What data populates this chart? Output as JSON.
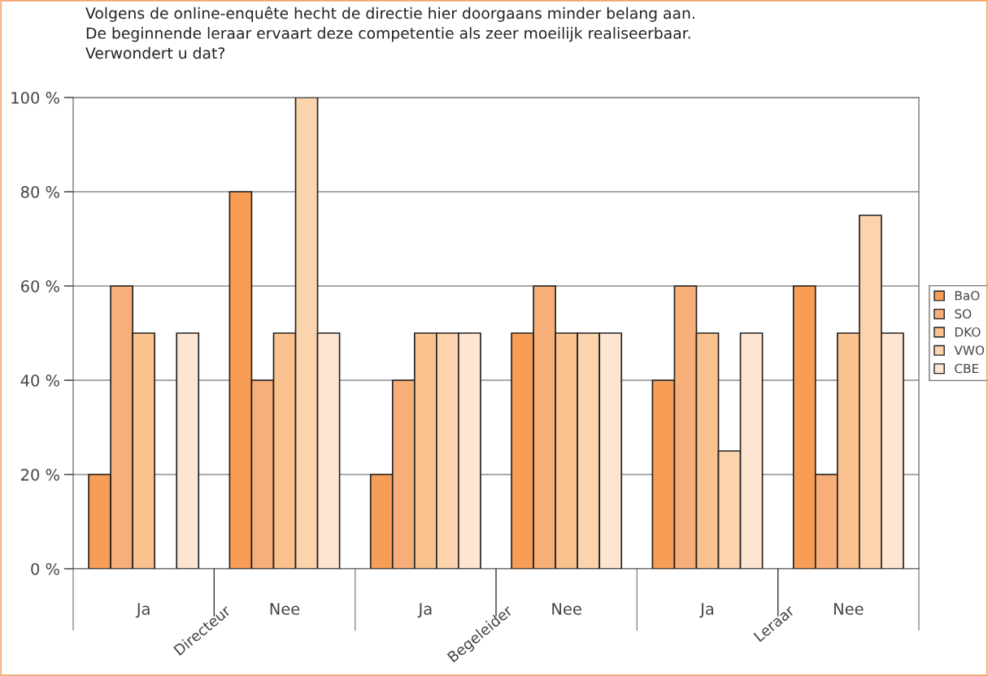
{
  "chart_data": {
    "type": "bar",
    "title": "Volgens de online-enquête hecht de directie hier doorgaans minder belang aan.\nDe beginnende leraar ervaart deze competentie als zeer moeilijk realiseerbaar.\nVerwondert u dat?",
    "categories": [
      "Ja",
      "Nee",
      "Ja",
      "Nee",
      "Ja",
      "Nee"
    ],
    "annotations": [
      "Directeur",
      "Begeleider",
      "Leraar"
    ],
    "series": [
      {
        "name": "BaO",
        "color": "#f79d56",
        "values": [
          20,
          80,
          20,
          50,
          40,
          60
        ]
      },
      {
        "name": "SO",
        "color": "#f8ae78",
        "values": [
          60,
          40,
          40,
          60,
          60,
          20
        ]
      },
      {
        "name": "DKO",
        "color": "#f9c28f",
        "values": [
          50,
          50,
          50,
          50,
          50,
          50
        ]
      },
      {
        "name": "VWO",
        "color": "#fbd3ad",
        "values": [
          0,
          100,
          50,
          50,
          25,
          75
        ]
      },
      {
        "name": "CBE",
        "color": "#fde5d2",
        "values": [
          50,
          50,
          50,
          50,
          50,
          50
        ]
      }
    ],
    "ylim": [
      0,
      100
    ],
    "yticks": [
      {
        "value": 0,
        "label": "0 %"
      },
      {
        "value": 20,
        "label": "20 %"
      },
      {
        "value": 40,
        "label": "40 %"
      },
      {
        "value": 60,
        "label": "60 %"
      },
      {
        "value": 80,
        "label": "80 %"
      },
      {
        "value": 100,
        "label": "100 %"
      }
    ],
    "grid": "y",
    "legend": "right"
  }
}
